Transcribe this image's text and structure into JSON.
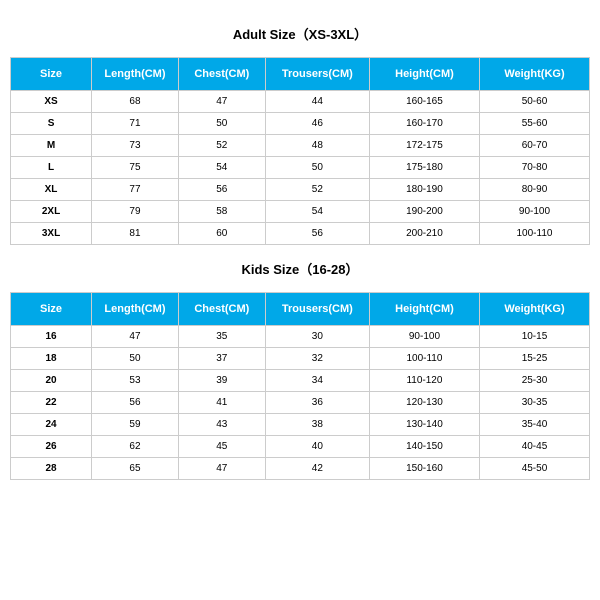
{
  "adult": {
    "title": "Adult Size（XS-3XL）",
    "columns": [
      "Size",
      "Length(CM)",
      "Chest(CM)",
      "Trousers(CM)",
      "Height(CM)",
      "Weight(KG)"
    ],
    "rows": [
      [
        "XS",
        "68",
        "47",
        "44",
        "160-165",
        "50-60"
      ],
      [
        "S",
        "71",
        "50",
        "46",
        "160-170",
        "55-60"
      ],
      [
        "M",
        "73",
        "52",
        "48",
        "172-175",
        "60-70"
      ],
      [
        "L",
        "75",
        "54",
        "50",
        "175-180",
        "70-80"
      ],
      [
        "XL",
        "77",
        "56",
        "52",
        "180-190",
        "80-90"
      ],
      [
        "2XL",
        "79",
        "58",
        "54",
        "190-200",
        "90-100"
      ],
      [
        "3XL",
        "81",
        "60",
        "56",
        "200-210",
        "100-110"
      ]
    ]
  },
  "kids": {
    "title": "Kids Size（16-28）",
    "columns": [
      "Size",
      "Length(CM)",
      "Chest(CM)",
      "Trousers(CM)",
      "Height(CM)",
      "Weight(KG)"
    ],
    "rows": [
      [
        "16",
        "47",
        "35",
        "30",
        "90-100",
        "10-15"
      ],
      [
        "18",
        "50",
        "37",
        "32",
        "100-110",
        "15-25"
      ],
      [
        "20",
        "53",
        "39",
        "34",
        "110-120",
        "25-30"
      ],
      [
        "22",
        "56",
        "41",
        "36",
        "120-130",
        "30-35"
      ],
      [
        "24",
        "59",
        "43",
        "38",
        "130-140",
        "35-40"
      ],
      [
        "26",
        "62",
        "45",
        "40",
        "140-150",
        "40-45"
      ],
      [
        "28",
        "65",
        "47",
        "42",
        "150-160",
        "45-50"
      ]
    ]
  },
  "style": {
    "header_bg": "#00a8e8",
    "header_text": "#ffffff",
    "border_color": "#cccccc",
    "bg": "#ffffff"
  }
}
